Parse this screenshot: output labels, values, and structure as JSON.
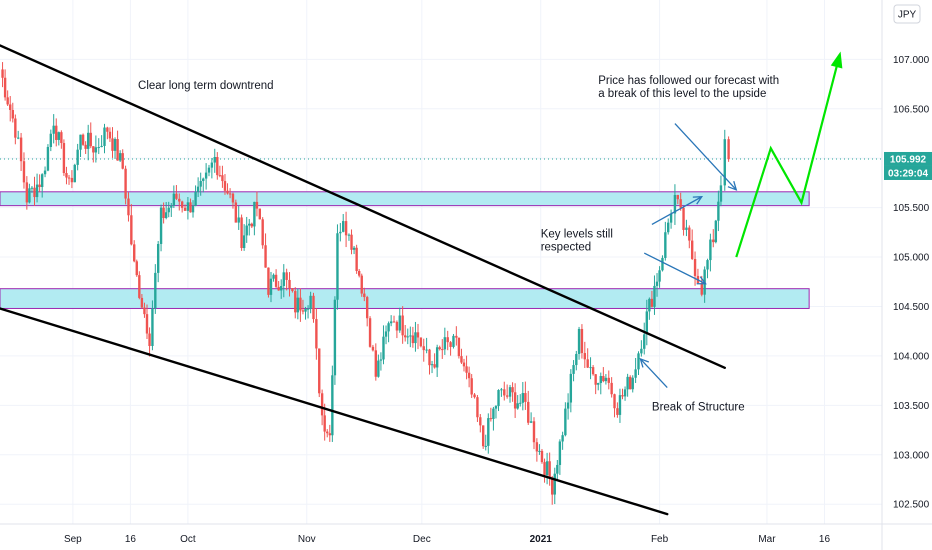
{
  "chart_data": {
    "type": "candlestick",
    "instrument_currency": "JPY",
    "last_price": "105.992",
    "countdown": "03:29:04",
    "y_ticks": [
      "102.500",
      "103.000",
      "103.500",
      "104.000",
      "104.500",
      "105.000",
      "105.500",
      "106.000",
      "106.500",
      "107.000"
    ],
    "ylim": [
      102.3,
      107.6
    ],
    "x_ticks": [
      "Sep",
      "16",
      "Oct",
      "Nov",
      "Dec",
      "2021",
      "Feb",
      "Mar",
      "16"
    ],
    "x_tick_dates": [
      "2020-09-01",
      "2020-09-16",
      "2020-10-01",
      "2020-11-01",
      "2020-12-01",
      "2021-01-01",
      "2021-02-01",
      "2021-03-01",
      "2021-03-16"
    ],
    "xlim": [
      "2020-08-13",
      "2021-03-31"
    ],
    "price_path": [
      [
        "2020-08-13",
        106.9
      ],
      [
        "2020-08-17",
        106.3
      ],
      [
        "2020-08-20",
        105.6
      ],
      [
        "2020-08-24",
        105.8
      ],
      [
        "2020-08-27",
        106.4
      ],
      [
        "2020-08-31",
        105.7
      ],
      [
        "2020-09-03",
        106.2
      ],
      [
        "2020-09-07",
        106.1
      ],
      [
        "2020-09-10",
        106.3
      ],
      [
        "2020-09-14",
        105.9
      ],
      [
        "2020-09-17",
        104.9
      ],
      [
        "2020-09-21",
        104.2
      ],
      [
        "2020-09-24",
        105.4
      ],
      [
        "2020-09-28",
        105.6
      ],
      [
        "2020-10-01",
        105.5
      ],
      [
        "2020-10-05",
        105.7
      ],
      [
        "2020-10-08",
        106.0
      ],
      [
        "2020-10-12",
        105.6
      ],
      [
        "2020-10-15",
        105.2
      ],
      [
        "2020-10-19",
        105.5
      ],
      [
        "2020-10-22",
        104.7
      ],
      [
        "2020-10-26",
        104.8
      ],
      [
        "2020-10-29",
        104.5
      ],
      [
        "2020-11-02",
        104.6
      ],
      [
        "2020-11-05",
        103.4
      ],
      [
        "2020-11-07",
        103.2
      ],
      [
        "2020-11-09",
        105.3
      ],
      [
        "2020-11-12",
        105.3
      ],
      [
        "2020-11-16",
        104.6
      ],
      [
        "2020-11-19",
        103.8
      ],
      [
        "2020-11-23",
        104.4
      ],
      [
        "2020-11-26",
        104.3
      ],
      [
        "2020-11-30",
        104.2
      ],
      [
        "2020-12-03",
        103.9
      ],
      [
        "2020-12-07",
        104.1
      ],
      [
        "2020-12-10",
        104.1
      ],
      [
        "2020-12-14",
        103.6
      ],
      [
        "2020-12-17",
        103.1
      ],
      [
        "2020-12-21",
        103.6
      ],
      [
        "2020-12-24",
        103.6
      ],
      [
        "2020-12-28",
        103.5
      ],
      [
        "2020-12-31",
        103.1
      ],
      [
        "2021-01-04",
        102.7
      ],
      [
        "2021-01-06",
        103.1
      ],
      [
        "2021-01-11",
        104.2
      ],
      [
        "2021-01-14",
        103.8
      ],
      [
        "2021-01-18",
        103.8
      ],
      [
        "2021-01-21",
        103.5
      ],
      [
        "2021-01-25",
        103.8
      ],
      [
        "2021-01-28",
        104.3
      ],
      [
        "2021-02-01",
        104.9
      ],
      [
        "2021-02-04",
        105.5
      ],
      [
        "2021-02-05",
        105.6
      ],
      [
        "2021-02-08",
        105.2
      ],
      [
        "2021-02-11",
        104.8
      ],
      [
        "2021-02-12",
        104.7
      ],
      [
        "2021-02-15",
        105.2
      ],
      [
        "2021-02-17",
        105.8
      ],
      [
        "2021-02-18",
        106.1
      ],
      [
        "2021-02-19",
        105.99
      ]
    ],
    "levels": [
      {
        "low": 105.52,
        "high": 105.66,
        "from": "2020-08-13",
        "to": "2021-03-12"
      },
      {
        "low": 104.48,
        "high": 104.68,
        "from": "2020-08-13",
        "to": "2021-03-12"
      }
    ],
    "trendlines": [
      {
        "points": [
          [
            "2020-08-13",
            107.14
          ],
          [
            "2021-02-18",
            103.88
          ]
        ]
      },
      {
        "points": [
          [
            "2020-08-13",
            104.48
          ],
          [
            "2021-02-03",
            102.4
          ]
        ]
      }
    ],
    "forecast_path": [
      [
        "2021-02-21",
        105.0
      ],
      [
        "2021-03-02",
        106.1
      ],
      [
        "2021-03-10",
        105.55
      ],
      [
        "2021-03-20",
        107.05
      ]
    ],
    "annotations": [
      {
        "lines": [
          "Clear long term downtrend"
        ],
        "x": "2020-09-18",
        "y": 106.7
      },
      {
        "lines": [
          "Price has followed our forecast with",
          "a break of this level to the upside"
        ],
        "x": "2021-01-16",
        "y": 106.75
      },
      {
        "lines": [
          "Key levels still",
          "respected"
        ],
        "x": "2021-01-01",
        "y": 105.2
      },
      {
        "lines": [
          "Break of Structure"
        ],
        "x": "2021-01-30",
        "y": 103.45
      }
    ],
    "arrows": [
      {
        "from": [
          "2021-02-05",
          106.35
        ],
        "to": [
          "2021-02-21",
          105.68
        ]
      },
      {
        "from": [
          "2021-01-30",
          105.33
        ],
        "to": [
          "2021-02-12",
          105.61
        ]
      },
      {
        "from": [
          "2021-01-28",
          105.04
        ],
        "to": [
          "2021-02-13",
          104.73
        ]
      },
      {
        "from": [
          "2021-02-03",
          103.68
        ],
        "to": [
          "2021-01-27",
          103.97
        ]
      }
    ],
    "colors": {
      "up": "#26a69a",
      "down": "#ef5350",
      "level_fill": "#b2ebf2",
      "level_border": "#9c27b0",
      "trendline": "#000000",
      "forecast": "#00e600",
      "arrow": "#2a76b8",
      "price_line": "#26a69a",
      "grid": "#f0f3fa"
    }
  }
}
